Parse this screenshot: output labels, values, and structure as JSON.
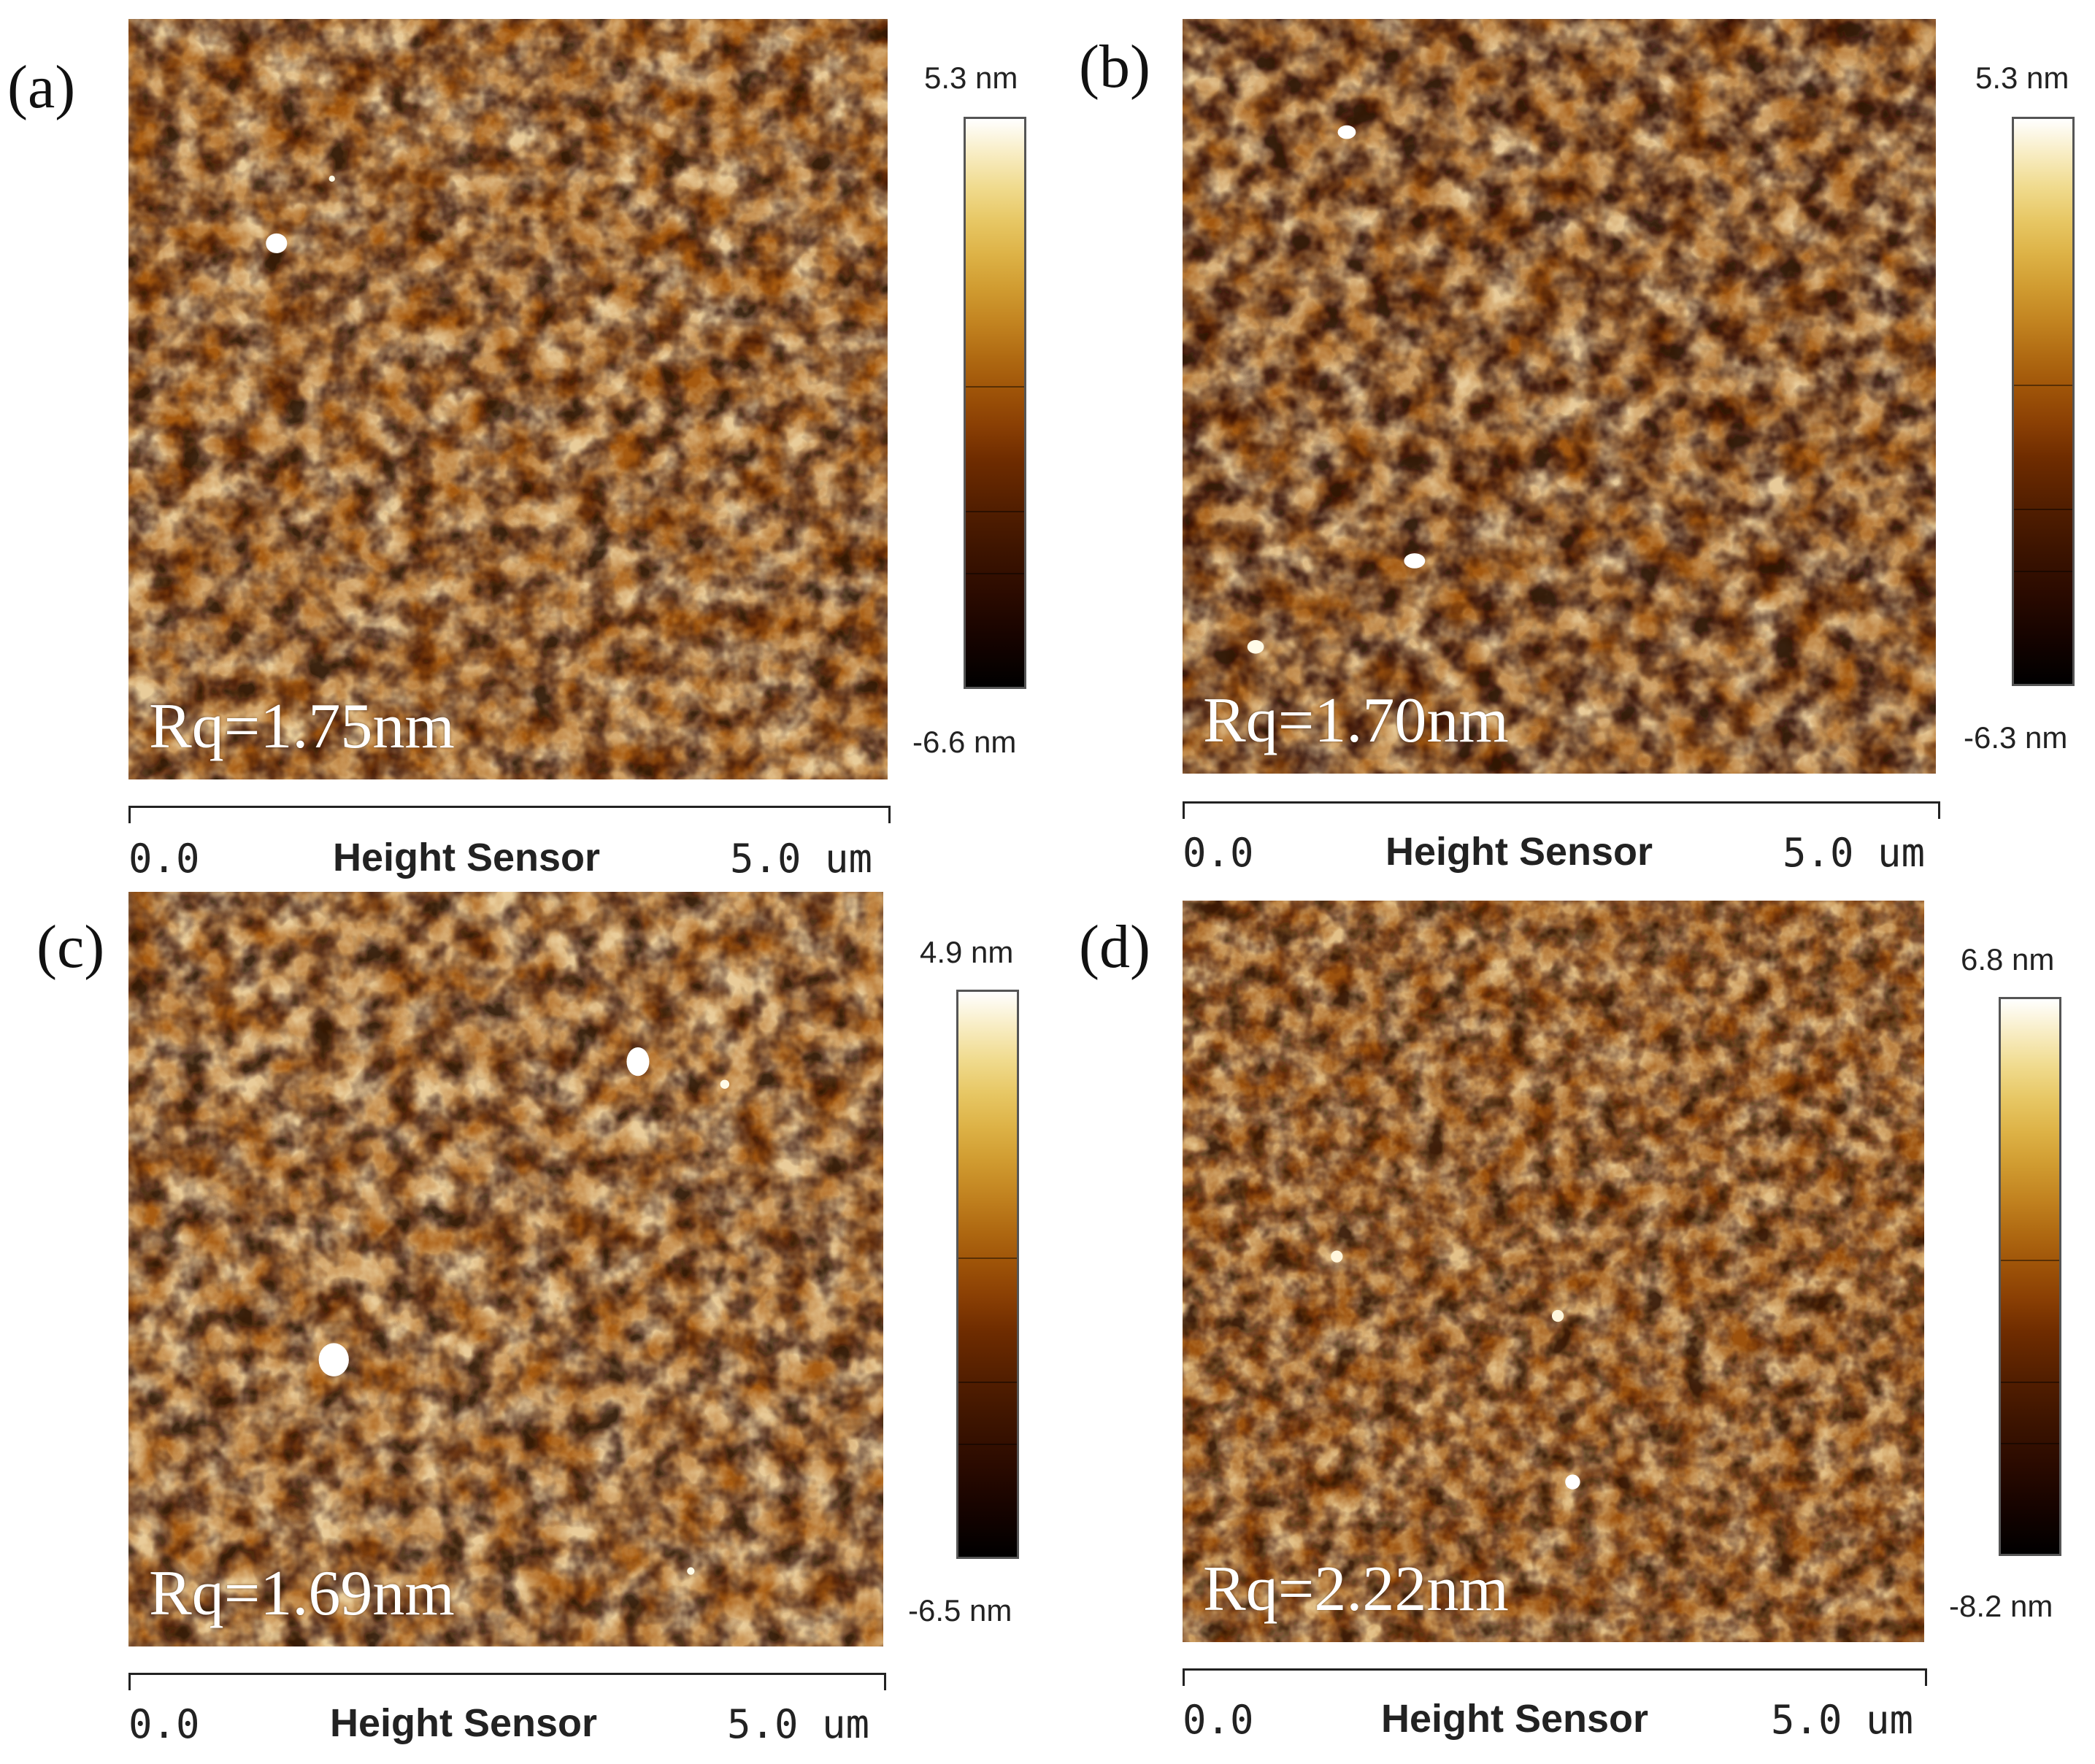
{
  "panels": [
    {
      "letter": "(a)",
      "rq": "Rq=1.75nm",
      "cb_max": "5.3 nm",
      "cb_min": "-6.6 nm",
      "axis_start": "0.0",
      "axis_title": "Height Sensor",
      "axis_end": "5.0 um"
    },
    {
      "letter": "(b)",
      "rq": "Rq=1.70nm",
      "cb_max": "5.3 nm",
      "cb_min": "-6.3 nm",
      "axis_start": "0.0",
      "axis_title": "Height Sensor",
      "axis_end": "5.0 um"
    },
    {
      "letter": "(c)",
      "rq": "Rq=1.69nm",
      "cb_max": "4.9 nm",
      "cb_min": "-6.5 nm",
      "axis_start": "0.0",
      "axis_title": "Height Sensor",
      "axis_end": "5.0 um"
    },
    {
      "letter": "(d)",
      "rq": "Rq=2.22nm",
      "cb_max": "6.8 nm",
      "cb_min": "-8.2 nm",
      "axis_start": "0.0",
      "axis_title": "Height Sensor",
      "axis_end": "5.0 um"
    }
  ],
  "colors": {
    "afm_dark": "#2a0a00",
    "afm_mid": "#a65a10",
    "afm_light": "#f6e3b0"
  }
}
